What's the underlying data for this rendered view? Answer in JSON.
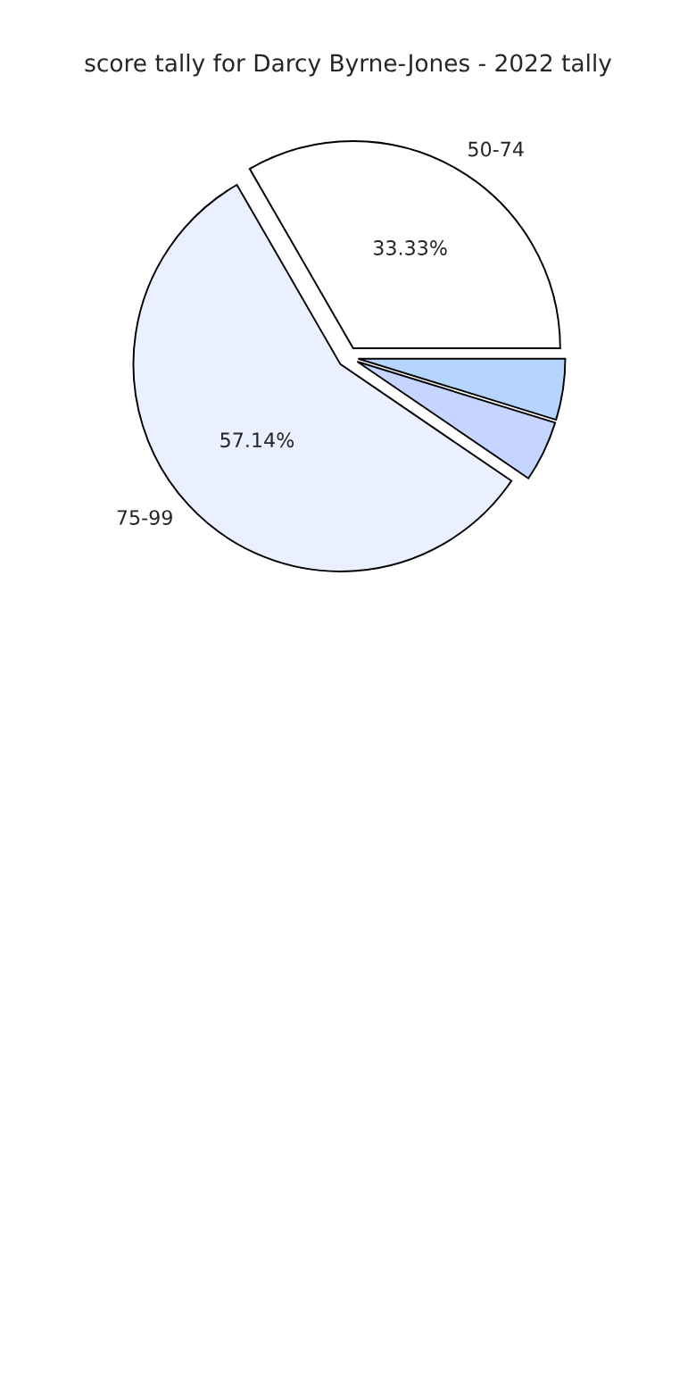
{
  "chart_data": {
    "type": "pie",
    "title": "score tally for Darcy Byrne-Jones - 2022 tally",
    "categories": [
      "50-74",
      "75-99",
      null,
      null
    ],
    "values": [
      33.33,
      57.14,
      4.76,
      4.76
    ],
    "value_labels": [
      "33.33%",
      "57.14%",
      null,
      null
    ],
    "colors": [
      "#ffffff",
      "#eaf0ff",
      "#c5d5ff",
      "#b5d5ff"
    ],
    "legend": false
  }
}
